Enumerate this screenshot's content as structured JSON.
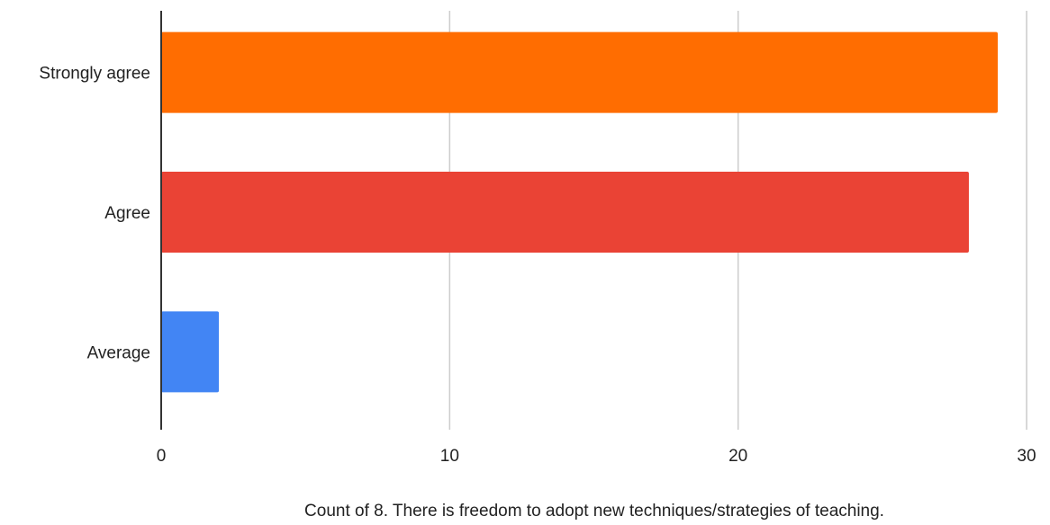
{
  "chart_data": {
    "type": "bar",
    "orientation": "horizontal",
    "title": "",
    "xlabel": "Count of 8. There is freedom to adopt new techniques/strategies of teaching.",
    "ylabel": "",
    "categories": [
      "Strongly agree",
      "Agree",
      "Average"
    ],
    "values": [
      29,
      28,
      2
    ],
    "bar_colors": [
      "#ff6d01",
      "#ea4335",
      "#4285f4"
    ],
    "xlim": [
      0,
      30
    ],
    "xticks": [
      0,
      10,
      20,
      30
    ],
    "grid": true,
    "legend": "none"
  }
}
